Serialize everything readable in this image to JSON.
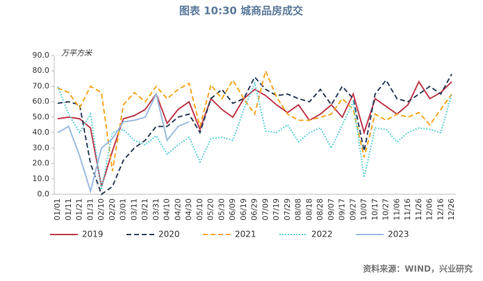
{
  "chart_data": {
    "type": "line",
    "title": "图表 10:30 城商品房成交",
    "y_label": "万平方米",
    "source": "资料来源：WIND，兴业研究",
    "categories": [
      "01/01",
      "01/11",
      "01/21",
      "01/31",
      "02/10",
      "02/20",
      "03/01",
      "03/11",
      "03/21",
      "03/31",
      "04/10",
      "04/20",
      "04/30",
      "05/10",
      "05/20",
      "05/30",
      "06/09",
      "06/19",
      "06/29",
      "07/09",
      "07/19",
      "07/29",
      "08/08",
      "08/18",
      "08/28",
      "09/07",
      "09/17",
      "09/27",
      "10/07",
      "10/17",
      "10/27",
      "11/06",
      "11/16",
      "11/26",
      "12/06",
      "12/16",
      "12/26"
    ],
    "series": [
      {
        "name": "2019",
        "color": "#c0394b",
        "dash": "solid",
        "values": [
          49,
          50,
          49,
          43,
          5,
          28,
          49,
          51,
          55,
          65,
          46,
          55,
          60,
          42,
          62,
          55,
          50,
          62,
          68,
          64,
          58,
          53,
          58,
          48,
          52,
          58,
          50,
          65,
          40,
          62,
          57,
          52,
          58,
          73,
          62,
          66,
          73
        ]
      },
      {
        "name": "2020",
        "color": "#2e3f5c",
        "dash": "dashed",
        "values": [
          59,
          60,
          58,
          20,
          0,
          5,
          22,
          30,
          35,
          44,
          44,
          50,
          52,
          40,
          62,
          68,
          59,
          62,
          76,
          68,
          64,
          65,
          62,
          60,
          68,
          58,
          70,
          62,
          28,
          65,
          74,
          62,
          60,
          65,
          70,
          65,
          78
        ]
      },
      {
        "name": "2021",
        "color": "#f5a623",
        "dash": "dashed",
        "values": [
          69,
          66,
          56,
          70,
          66,
          15,
          58,
          66,
          60,
          70,
          62,
          68,
          72,
          44,
          71,
          62,
          74,
          62,
          52,
          80,
          63,
          52,
          48,
          48,
          50,
          52,
          62,
          55,
          24,
          52,
          48,
          52,
          50,
          53,
          45,
          55,
          65
        ]
      },
      {
        "name": "2022",
        "color": "#5fd3d8",
        "dash": "dotted",
        "values": [
          70,
          52,
          40,
          52,
          3,
          40,
          42,
          35,
          32,
          38,
          26,
          32,
          37,
          21,
          36,
          37,
          35,
          55,
          72,
          41,
          40,
          45,
          34,
          40,
          43,
          30,
          45,
          60,
          11,
          43,
          42,
          34,
          40,
          43,
          42,
          40,
          65
        ]
      },
      {
        "name": "2023",
        "color": "#9bbbe0",
        "dash": "solid",
        "values": [
          40,
          44,
          25,
          2,
          30,
          36,
          47,
          48,
          50,
          65,
          35,
          44,
          47,
          null,
          null,
          null,
          null,
          null,
          null,
          null,
          null,
          null,
          null,
          null,
          null,
          null,
          null,
          null,
          null,
          null,
          null,
          null,
          null,
          null,
          null,
          null,
          null
        ]
      }
    ],
    "ylim": [
      0,
      90
    ],
    "yticks": [
      {
        "value": 0,
        "label": "0.0"
      },
      {
        "value": 10,
        "label": "10.0"
      },
      {
        "value": 20,
        "label": "20.0"
      },
      {
        "value": 30,
        "label": "30.0"
      },
      {
        "value": 40,
        "label": "40.0"
      },
      {
        "value": 50,
        "label": "50.0"
      },
      {
        "value": 60,
        "label": "60.0"
      },
      {
        "value": 70,
        "label": "70.0"
      },
      {
        "value": 80,
        "label": "80.0"
      },
      {
        "value": 90,
        "label": "90.0"
      }
    ],
    "grid": false,
    "legend": "bottom"
  }
}
